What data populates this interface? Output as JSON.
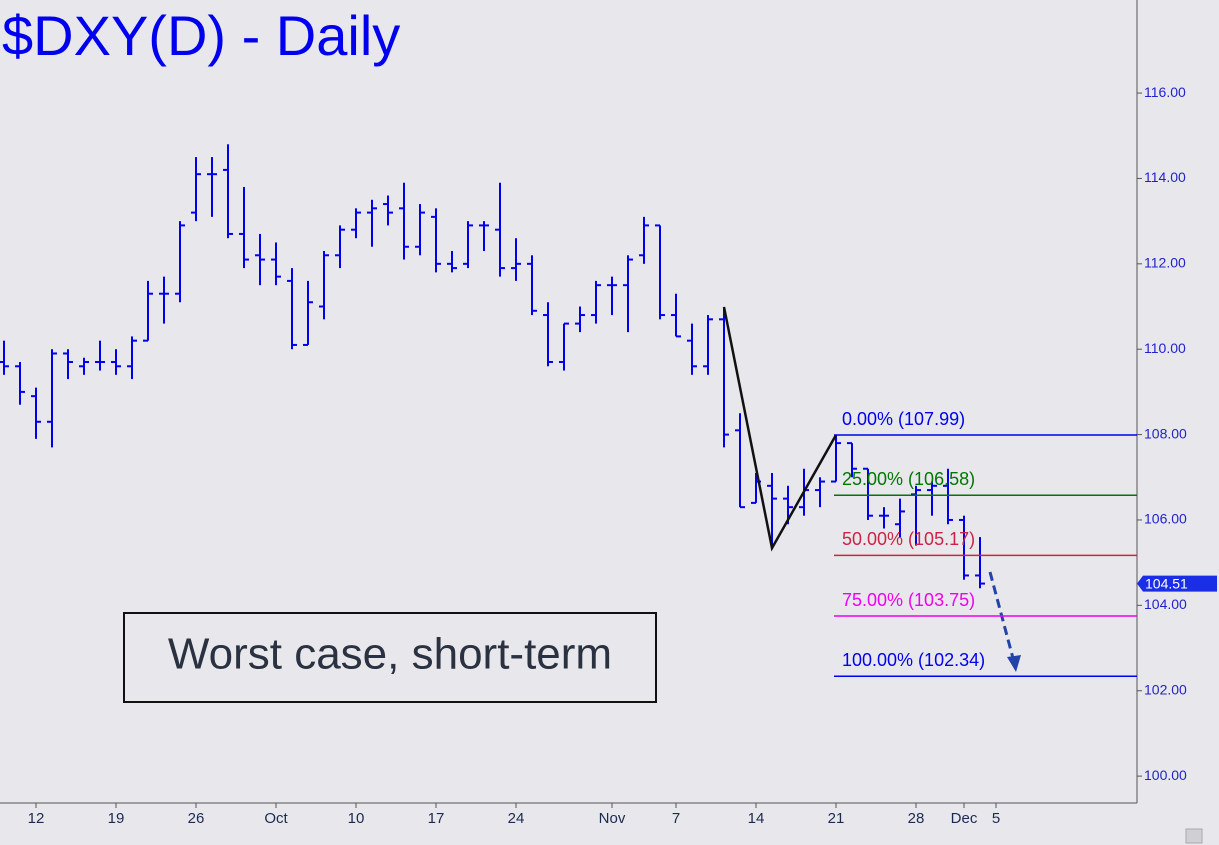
{
  "chart_data": {
    "type": "ohlc",
    "title": "$DXY(D) - Daily",
    "categories": [
      null,
      null,
      "12",
      null,
      null,
      null,
      null,
      "19",
      null,
      null,
      null,
      null,
      "26",
      null,
      null,
      null,
      null,
      "Oct",
      null,
      null,
      null,
      null,
      "10",
      null,
      null,
      null,
      null,
      "17",
      null,
      null,
      null,
      null,
      "24",
      null,
      null,
      null,
      null,
      null,
      "Nov",
      null,
      null,
      null,
      "7",
      null,
      null,
      null,
      null,
      "14",
      null,
      null,
      null,
      null,
      "21",
      null,
      null,
      null,
      null,
      "28",
      null,
      null,
      "Dec",
      null,
      "5"
    ],
    "series": [
      {
        "name": "$DXY",
        "color": "#0000ee",
        "open": [
          109.7,
          109.6,
          108.9,
          108.3,
          109.9,
          109.6,
          109.7,
          109.7,
          109.6,
          110.2,
          111.3,
          111.3,
          113.2,
          114.1,
          114.2,
          112.7,
          112.2,
          112.1,
          111.6,
          110.1,
          111.0,
          112.2,
          112.8,
          113.2,
          113.4,
          113.3,
          112.4,
          113.1,
          112.0,
          112.0,
          112.9,
          112.8,
          111.9,
          112.0,
          110.8,
          109.7,
          110.6,
          110.8,
          111.5,
          111.5,
          112.2,
          112.9,
          110.8,
          110.2,
          109.6,
          110.7,
          108.1,
          106.4,
          106.8,
          106.5,
          106.3,
          106.7,
          106.9,
          107.8,
          107.2,
          106.1,
          105.9,
          106.6,
          106.7,
          106.8,
          106.0,
          104.7,
          null
        ],
        "high": [
          110.2,
          109.7,
          109.1,
          110.0,
          110.0,
          109.8,
          110.2,
          110.0,
          110.3,
          111.6,
          111.7,
          113.0,
          114.5,
          114.5,
          114.8,
          113.8,
          112.7,
          112.5,
          111.9,
          111.6,
          112.3,
          112.9,
          113.3,
          113.5,
          113.6,
          113.9,
          113.4,
          113.3,
          112.3,
          113.0,
          113.0,
          113.9,
          112.6,
          112.2,
          111.1,
          110.6,
          111.0,
          111.6,
          111.7,
          112.2,
          113.1,
          112.9,
          111.3,
          110.6,
          110.8,
          110.99,
          108.5,
          107.1,
          107.1,
          106.8,
          107.2,
          107.0,
          107.99,
          107.8,
          107.2,
          106.3,
          106.5,
          106.8,
          106.9,
          107.2,
          106.1,
          105.6,
          null
        ],
        "low": [
          109.4,
          108.7,
          107.9,
          107.7,
          109.3,
          109.4,
          109.5,
          109.4,
          109.3,
          110.2,
          110.6,
          111.1,
          113.0,
          113.1,
          112.6,
          111.9,
          111.5,
          111.5,
          110.0,
          110.1,
          110.7,
          111.9,
          112.6,
          112.4,
          112.9,
          112.1,
          112.2,
          111.8,
          111.8,
          111.9,
          112.3,
          111.7,
          111.6,
          110.8,
          109.6,
          109.5,
          110.4,
          110.6,
          110.8,
          110.4,
          112.0,
          110.7,
          110.3,
          109.4,
          109.4,
          107.7,
          106.3,
          106.4,
          105.34,
          105.9,
          106.1,
          106.3,
          106.9,
          107.0,
          106.0,
          105.8,
          105.6,
          105.4,
          106.1,
          105.9,
          104.6,
          104.4,
          null
        ],
        "close": [
          109.6,
          109.0,
          108.3,
          109.9,
          109.7,
          109.7,
          109.7,
          109.6,
          110.2,
          111.3,
          111.3,
          112.9,
          114.1,
          114.1,
          112.7,
          112.1,
          112.1,
          111.7,
          110.1,
          111.1,
          112.2,
          112.8,
          113.2,
          113.3,
          113.2,
          112.4,
          113.2,
          112.0,
          111.9,
          112.9,
          112.9,
          111.9,
          112.0,
          110.9,
          109.7,
          110.6,
          110.8,
          111.5,
          111.5,
          112.1,
          112.9,
          110.8,
          110.3,
          109.6,
          110.7,
          108.0,
          106.3,
          106.9,
          106.5,
          106.3,
          106.7,
          106.9,
          107.8,
          107.2,
          106.1,
          106.1,
          106.2,
          106.7,
          106.8,
          106.0,
          104.7,
          104.51,
          null
        ]
      }
    ],
    "last_price": 104.51,
    "ylim": [
      99.37,
      118.18
    ],
    "yticks": [
      {
        "value": 100,
        "label": "100.00"
      },
      {
        "value": 102,
        "label": "102.00"
      },
      {
        "value": 104,
        "label": "104.00"
      },
      {
        "value": 106,
        "label": "106.00"
      },
      {
        "value": 108,
        "label": "108.00"
      },
      {
        "value": 110,
        "label": "110.00"
      },
      {
        "value": 112,
        "label": "112.00"
      },
      {
        "value": 114,
        "label": "114.00"
      },
      {
        "value": 116,
        "label": "116.00"
      }
    ],
    "fib_levels": [
      {
        "value": 107.99,
        "label": "0.00% (107.99)",
        "color": "#0000ee"
      },
      {
        "value": 106.58,
        "label": "25.00% (106.58)",
        "color": "#007700"
      },
      {
        "value": 105.17,
        "label": "50.00% (105.17)",
        "color": "#cc2244"
      },
      {
        "value": 103.75,
        "label": "75.00% (103.75)",
        "color": "#ee00ee"
      },
      {
        "value": 102.34,
        "label": "100.00% (102.34)",
        "color": "#0000ee"
      }
    ],
    "annotation": "Worst case, short-term"
  }
}
